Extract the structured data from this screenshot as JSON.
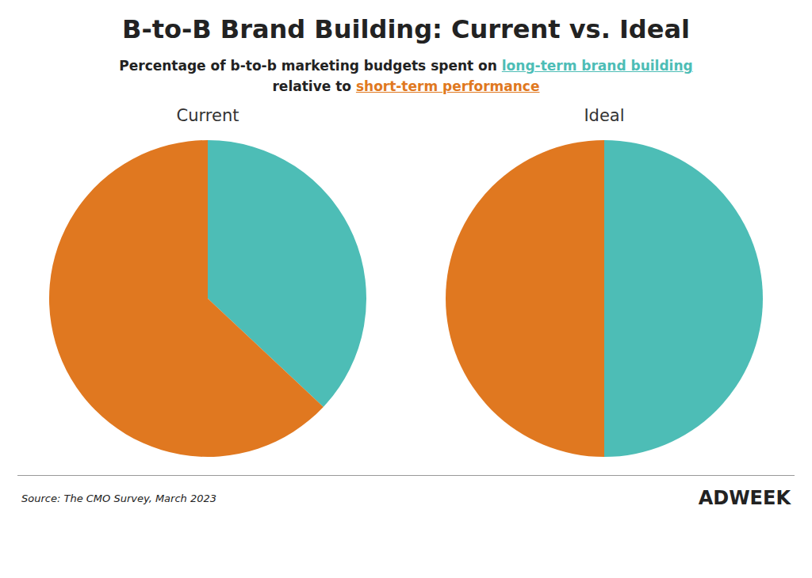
{
  "title": "B-to-B Brand Building: Current vs. Ideal",
  "subtitle": [
    [
      {
        "text": "Percentage of b-to-b marketing budgets spent on "
      },
      {
        "text": "long-term brand building",
        "color": "#4DBDB6"
      }
    ],
    [
      {
        "text": "relative to "
      },
      {
        "text": "short-term performance",
        "color": "#E07820"
      }
    ]
  ],
  "annotations": [
    "Source: The CMO Survey, March 2023",
    "ADWEEK"
  ],
  "chart_data": [
    {
      "type": "pie",
      "title": "Current",
      "values": [
        37,
        63
      ],
      "colors": [
        "#4DBDB6",
        "#E07820"
      ]
    },
    {
      "type": "pie",
      "title": "Ideal",
      "values": [
        50,
        50
      ],
      "colors": [
        "#4DBDB6",
        "#E07820"
      ]
    }
  ]
}
